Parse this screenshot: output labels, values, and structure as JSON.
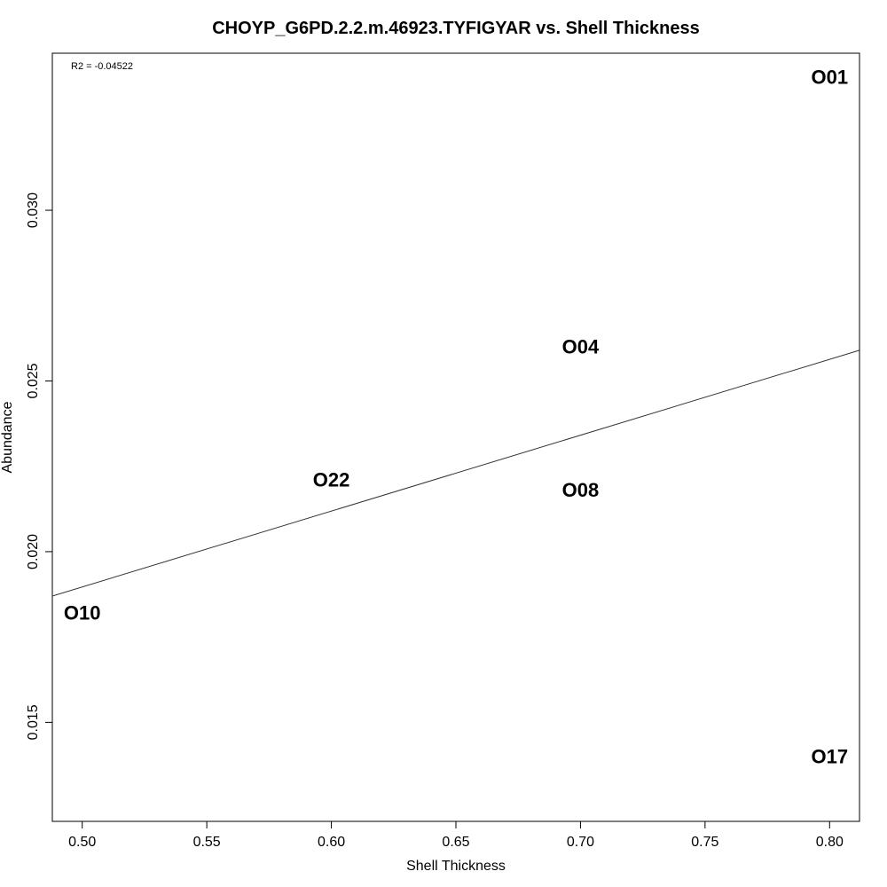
{
  "chart_data": {
    "type": "scatter",
    "title": "CHOYP_G6PD.2.2.m.46923.TYFIGYAR vs. Shell Thickness",
    "xlabel": "Shell Thickness",
    "ylabel": "Abundance",
    "xlim": [
      0.488,
      0.812
    ],
    "ylim": [
      0.0121,
      0.0346
    ],
    "x_ticks": [
      0.5,
      0.55,
      0.6,
      0.65,
      0.7,
      0.75,
      0.8
    ],
    "x_tick_labels": [
      "0.50",
      "0.55",
      "0.60",
      "0.65",
      "0.70",
      "0.75",
      "0.80"
    ],
    "y_ticks": [
      0.015,
      0.02,
      0.025,
      0.03
    ],
    "y_tick_labels": [
      "0.015",
      "0.020",
      "0.025",
      "0.030"
    ],
    "points": [
      {
        "label": "O01",
        "x": 0.8,
        "y": 0.0339
      },
      {
        "label": "O04",
        "x": 0.7,
        "y": 0.026
      },
      {
        "label": "O08",
        "x": 0.7,
        "y": 0.0218
      },
      {
        "label": "O22",
        "x": 0.6,
        "y": 0.0221
      },
      {
        "label": "O10",
        "x": 0.5,
        "y": 0.0182
      },
      {
        "label": "O17",
        "x": 0.8,
        "y": 0.014
      }
    ],
    "regression_line": {
      "x": [
        0.488,
        0.812
      ],
      "y": [
        0.0187,
        0.0259
      ]
    },
    "annotation": "R2 = -0.04522",
    "grid": false,
    "legend": "none"
  }
}
